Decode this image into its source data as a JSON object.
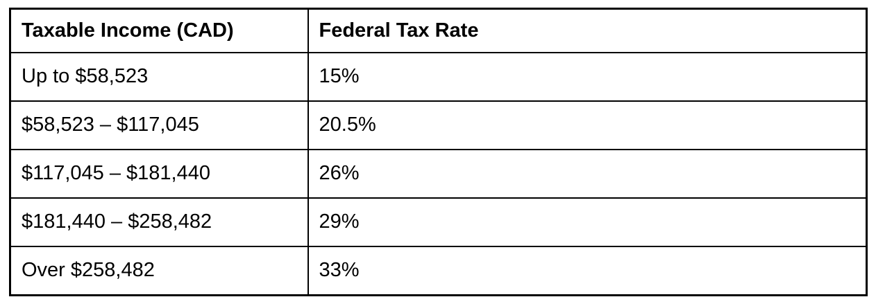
{
  "page": {
    "background_color": "#ffffff"
  },
  "table": {
    "title": "federal-tax-brackets-table",
    "style": {
      "border_color": "#000000",
      "text_color": "#000000",
      "background_color": "#ffffff"
    },
    "header": {
      "income_label": "Taxable Income (CAD)",
      "rate_label": "Federal Tax Rate"
    },
    "rows": [
      {
        "income": "Up to $58,523",
        "rate": "15%"
      },
      {
        "income": "$58,523 – $117,045",
        "rate": "20.5%"
      },
      {
        "income": "$117,045 – $181,440",
        "rate": "26%"
      },
      {
        "income": "$181,440 – $258,482",
        "rate": "29%"
      },
      {
        "income": "Over $258,482",
        "rate": "33%"
      }
    ]
  }
}
